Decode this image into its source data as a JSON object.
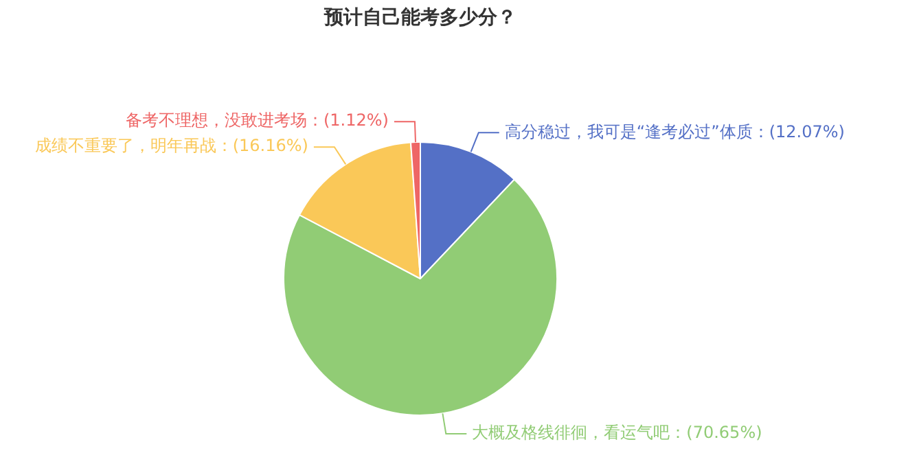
{
  "chart_data": {
    "type": "pie",
    "title": "预计自己能考多少分？",
    "categories": [
      "高分稳过，我可是“逢考必过”体质",
      "大概及格线徘徊，看运气吧",
      "成绩不重要了，明年再战",
      "备考不理想，没敢进考场"
    ],
    "values": [
      12.07,
      70.65,
      16.16,
      1.12
    ],
    "value_labels": [
      "(12.07%)",
      "(70.65%)",
      "(16.16%)",
      "(1.12%)"
    ],
    "colors": [
      "#5470c6",
      "#91cc75",
      "#fac858",
      "#ee6666"
    ]
  }
}
